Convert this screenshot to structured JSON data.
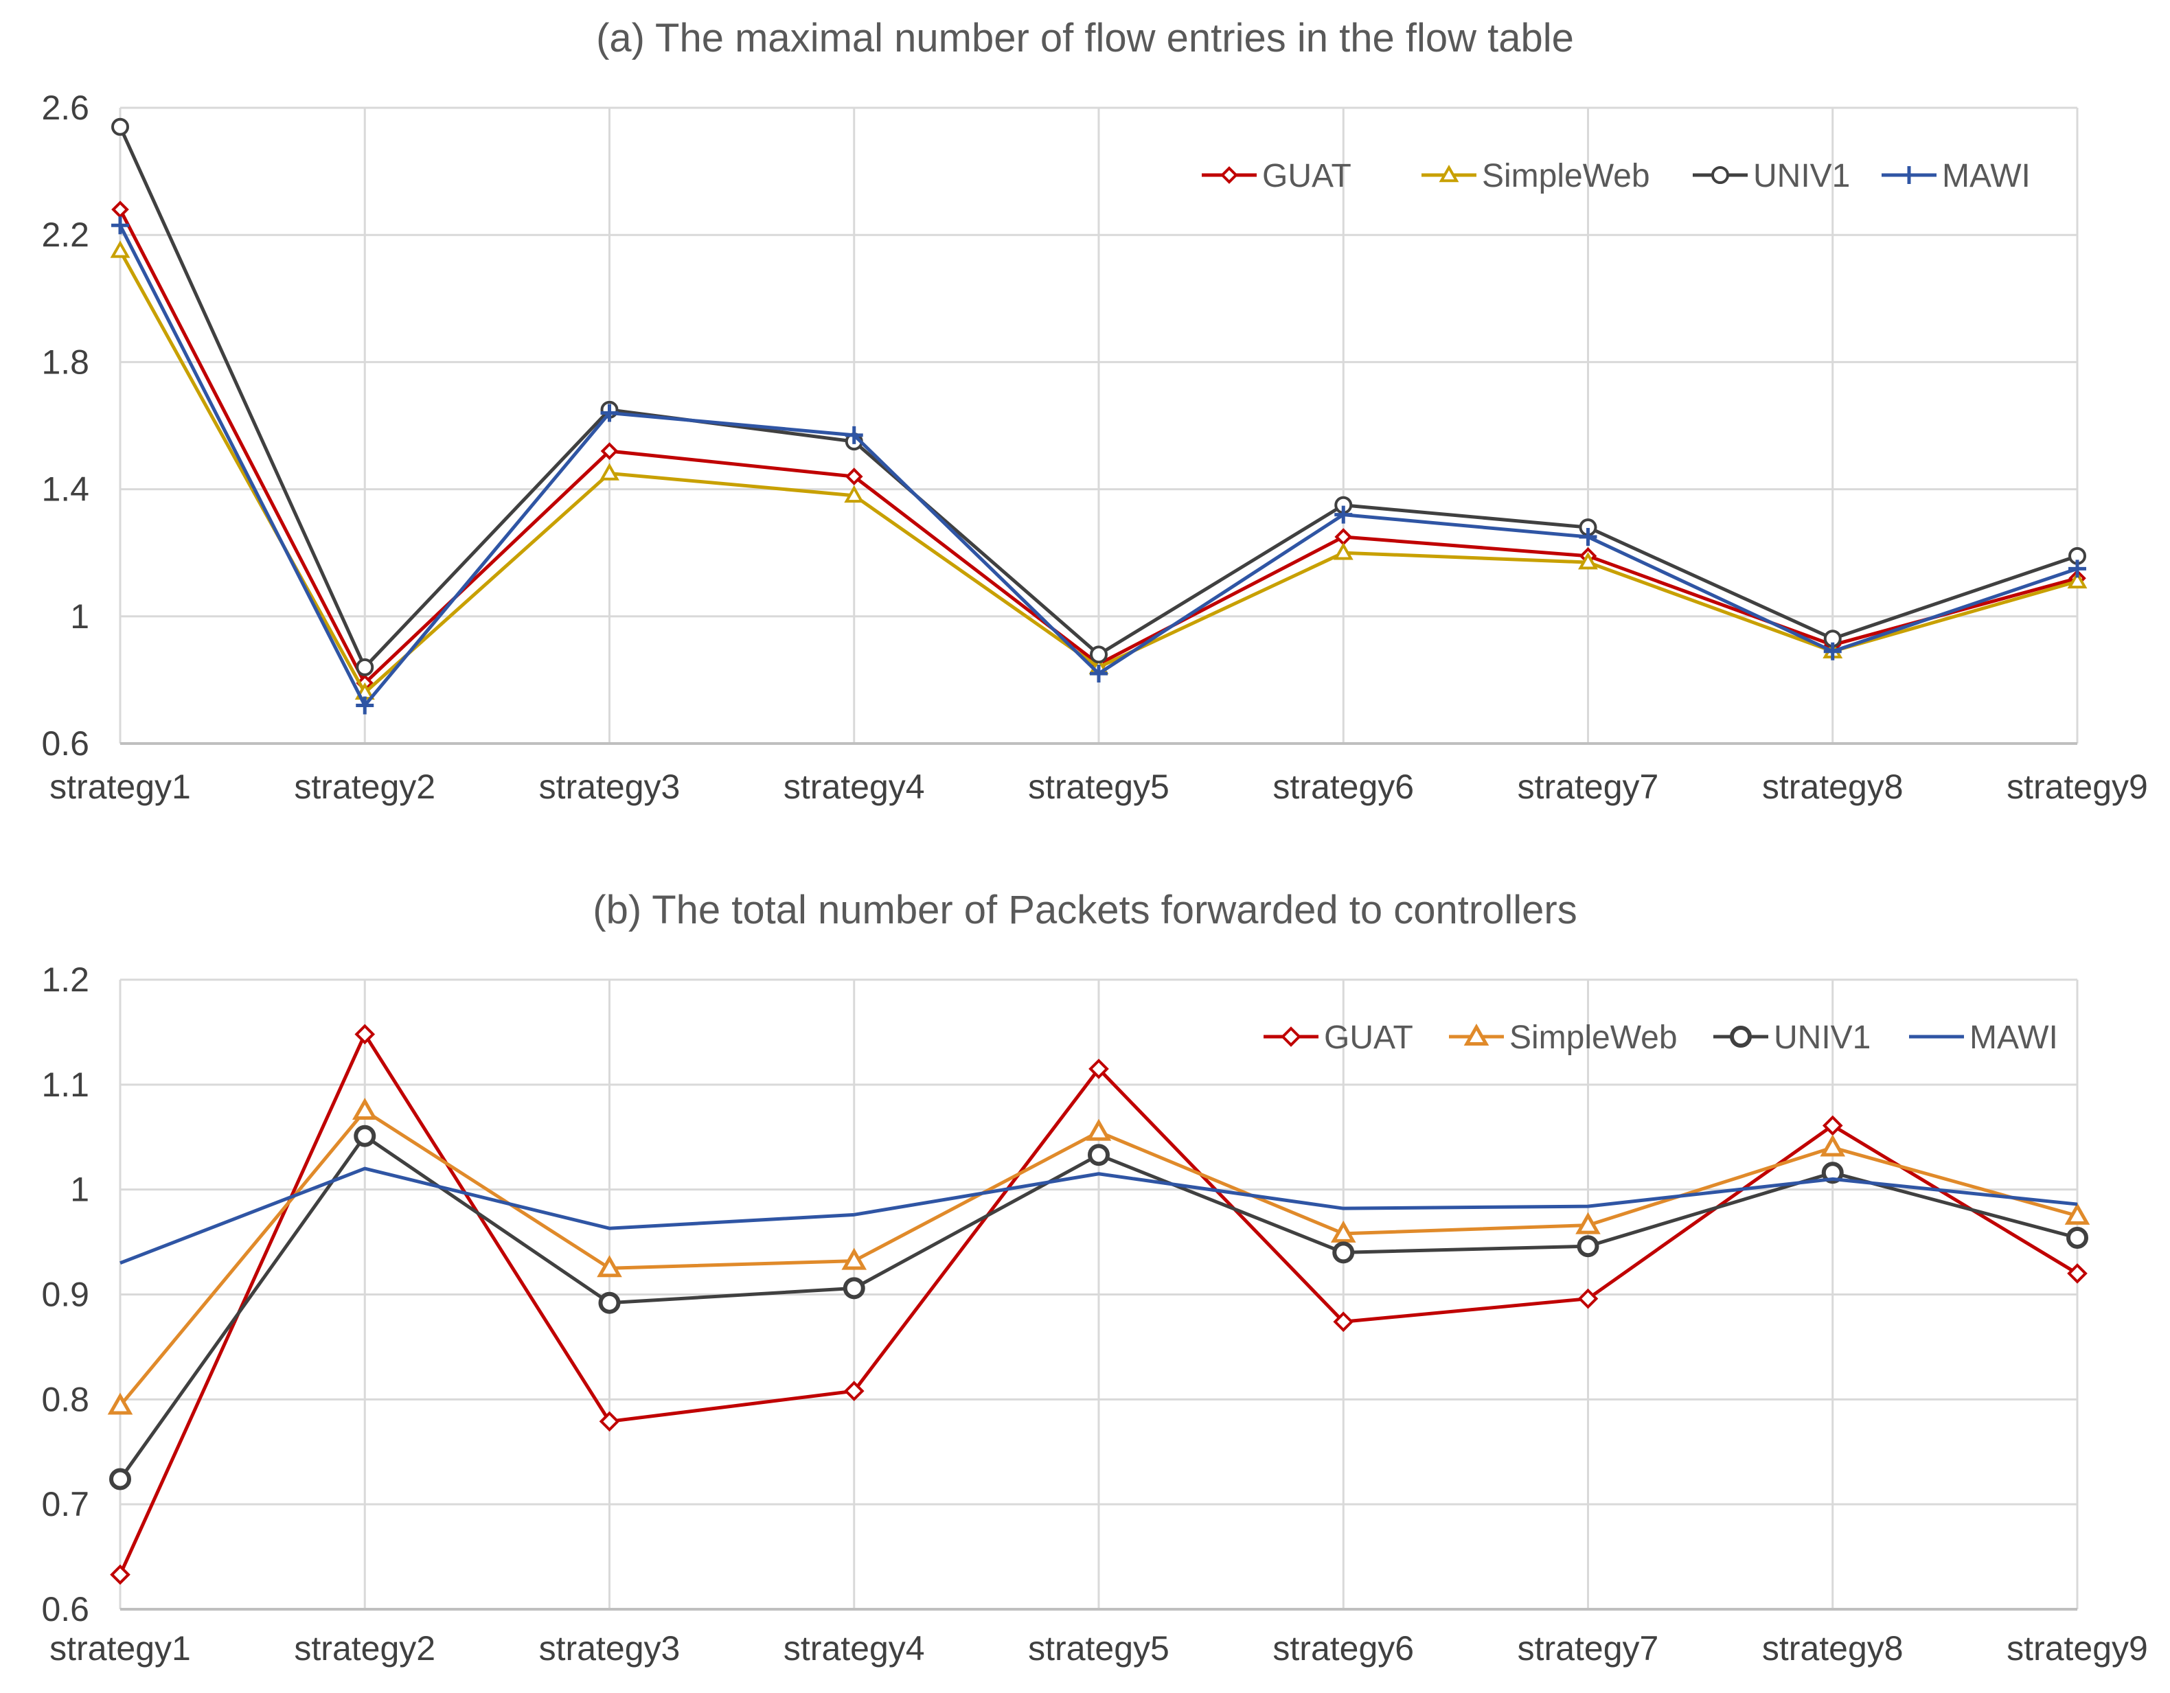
{
  "chart_data": [
    {
      "type": "line",
      "title": "(a) The maximal number of flow entries in the flow table",
      "categories": [
        "strategy1",
        "strategy2",
        "strategy3",
        "strategy4",
        "strategy5",
        "strategy6",
        "strategy7",
        "strategy8",
        "strategy9"
      ],
      "ylim": [
        0.6,
        2.6
      ],
      "yticks": [
        0.6,
        1,
        1.4,
        1.8,
        2.2,
        2.6
      ],
      "ytick_labels": [
        "0.6",
        "1",
        "1.4",
        "1.8",
        "2.2",
        "2.6"
      ],
      "grid": true,
      "legend_position": "top-right",
      "series": [
        {
          "name": "GUAT",
          "color": "#c00000",
          "marker": "diamond",
          "values": [
            2.28,
            0.79,
            1.52,
            1.44,
            0.85,
            1.25,
            1.19,
            0.91,
            1.12
          ]
        },
        {
          "name": "SimpleWeb",
          "color": "#c8a000",
          "marker": "triangle",
          "values": [
            2.15,
            0.76,
            1.45,
            1.38,
            0.84,
            1.2,
            1.17,
            0.89,
            1.11
          ]
        },
        {
          "name": "UNIV1",
          "color": "#404040",
          "marker": "circle",
          "values": [
            2.54,
            0.84,
            1.65,
            1.55,
            0.88,
            1.35,
            1.28,
            0.93,
            1.19
          ]
        },
        {
          "name": "MAWI",
          "color": "#2f55a4",
          "marker": "plus",
          "values": [
            2.23,
            0.72,
            1.64,
            1.57,
            0.82,
            1.32,
            1.25,
            0.89,
            1.15
          ]
        }
      ]
    },
    {
      "type": "line",
      "title": "(b) The total number of Packets forwarded to controllers",
      "categories": [
        "strategy1",
        "strategy2",
        "strategy3",
        "strategy4",
        "strategy5",
        "strategy6",
        "strategy7",
        "strategy8",
        "strategy9"
      ],
      "ylim": [
        0.6,
        1.2
      ],
      "yticks": [
        0.6,
        0.7,
        0.8,
        0.9,
        1,
        1.1,
        1.2
      ],
      "ytick_labels": [
        "0.6",
        "0.7",
        "0.8",
        "0.9",
        "1",
        "1.1",
        "1.2"
      ],
      "grid": true,
      "legend_position": "top-right",
      "series": [
        {
          "name": "GUAT",
          "color": "#c00000",
          "marker": "diamond",
          "values": [
            0.633,
            1.148,
            0.779,
            0.808,
            1.115,
            0.874,
            0.896,
            1.061,
            0.92
          ]
        },
        {
          "name": "SimpleWeb",
          "color": "#e08a2a",
          "marker": "triangle",
          "values": [
            0.794,
            1.075,
            0.925,
            0.932,
            1.055,
            0.958,
            0.966,
            1.04,
            0.975
          ]
        },
        {
          "name": "UNIV1",
          "color": "#404040",
          "marker": "circle",
          "values": [
            0.724,
            1.051,
            0.892,
            0.906,
            1.033,
            0.94,
            0.946,
            1.016,
            0.954
          ]
        },
        {
          "name": "MAWI",
          "color": "#2f55a4",
          "marker": "none",
          "values": [
            0.93,
            1.02,
            0.963,
            0.976,
            1.015,
            0.982,
            0.984,
            1.01,
            0.986
          ]
        }
      ]
    }
  ]
}
